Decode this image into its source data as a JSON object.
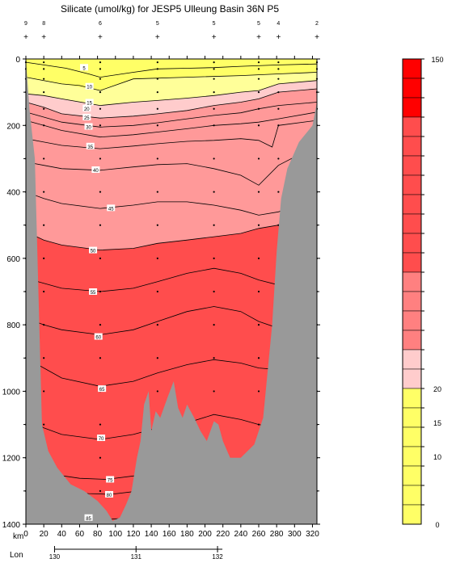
{
  "chart_data": {
    "type": "contour section",
    "title": "Silicate (umol/kg) for JESP5 Ulleung Basin 36N P5",
    "xlabel": "km",
    "ylabel": "",
    "lon_label": "Lon",
    "xlim": [
      0,
      325
    ],
    "ylim": [
      0,
      1400
    ],
    "y_reversed": true,
    "x_ticks": [
      "0",
      "20",
      "40",
      "60",
      "80",
      "100",
      "120",
      "140",
      "160",
      "180",
      "200",
      "220",
      "240",
      "260",
      "280",
      "300",
      "320"
    ],
    "y_ticks": [
      "0",
      "200",
      "400",
      "600",
      "800",
      "1000",
      "1200",
      "1400"
    ],
    "lon_ticks": [
      {
        "label": "130",
        "km": 32
      },
      {
        "label": "131",
        "km": 123
      },
      {
        "label": "132",
        "km": 214
      }
    ],
    "station_labels": [
      {
        "label": "9",
        "km": 0
      },
      {
        "label": "8",
        "km": 20
      },
      {
        "label": "6",
        "km": 83
      },
      {
        "label": "5",
        "km": 147
      },
      {
        "label": "5",
        "km": 210
      },
      {
        "label": "5",
        "km": 260
      },
      {
        "label": "4",
        "km": 282
      },
      {
        "label": "2",
        "km": 325
      }
    ],
    "station_km": [
      0,
      20,
      83,
      147,
      210,
      260,
      282,
      325
    ],
    "contour_levels": [
      5,
      10,
      15,
      20,
      25,
      30,
      35,
      40,
      45,
      50,
      55,
      60,
      65,
      70,
      75,
      80,
      85
    ],
    "contour_labels": [
      {
        "label": "5",
        "km": 65,
        "depth": 25
      },
      {
        "label": "10",
        "km": 71,
        "depth": 82
      },
      {
        "label": "15",
        "km": 71,
        "depth": 130
      },
      {
        "label": "20",
        "km": 68,
        "depth": 148
      },
      {
        "label": "25",
        "km": 68,
        "depth": 175
      },
      {
        "label": "30",
        "km": 70,
        "depth": 203
      },
      {
        "label": "35",
        "km": 72,
        "depth": 262
      },
      {
        "label": "40",
        "km": 78,
        "depth": 333
      },
      {
        "label": "45",
        "km": 95,
        "depth": 448
      },
      {
        "label": "50",
        "km": 75,
        "depth": 575
      },
      {
        "label": "55",
        "km": 75,
        "depth": 700
      },
      {
        "label": "60",
        "km": 81,
        "depth": 835
      },
      {
        "label": "65",
        "km": 85,
        "depth": 992
      },
      {
        "label": "70",
        "km": 84,
        "depth": 1140
      },
      {
        "label": "75",
        "km": 94,
        "depth": 1265
      },
      {
        "label": "80",
        "km": 93,
        "depth": 1310
      },
      {
        "label": "85",
        "km": 70,
        "depth": 1380
      }
    ],
    "colorbar": {
      "min": 0,
      "max": 150,
      "tick_labels": [
        {
          "label": "150",
          "value": 150
        },
        {
          "label": "20",
          "value": 20
        },
        {
          "label": "15",
          "value": 15
        },
        {
          "label": "10",
          "value": 10
        },
        {
          "label": "0",
          "value": 0
        }
      ]
    },
    "colors": {
      "yellow": "#ffff66",
      "light_yellow": "#ffff99",
      "pale_pink": "#ffcccc",
      "pink": "#ff9999",
      "coral": "#ff8080",
      "red": "#ff4d4d",
      "bright_red": "#ff0000",
      "topography": "#999999"
    }
  }
}
